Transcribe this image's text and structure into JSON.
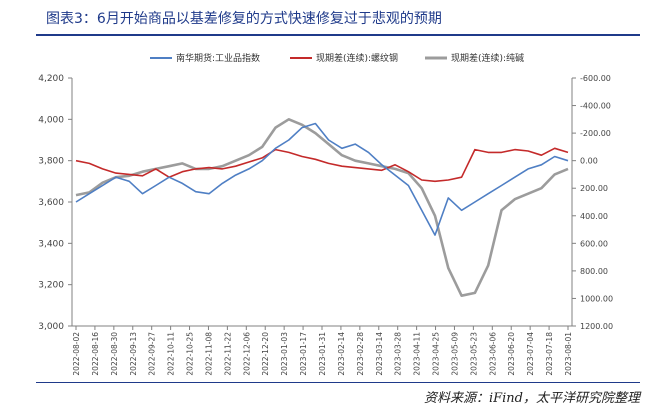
{
  "figure": {
    "title": "图表3：6月开始商品以基差修复的方式快速修复过于悲观的预期",
    "source": "资料来源：iFind，太平洋研究院整理"
  },
  "colors": {
    "title": "#1f3a8a",
    "series_blue": "#4f7fc4",
    "series_red": "#c42a2a",
    "series_gray": "#9c9c9c"
  },
  "chart_data": {
    "type": "line",
    "legend_position": "top-center",
    "grid": false,
    "left_axis": {
      "ylim": [
        3000,
        4200
      ],
      "ticks": [
        3000,
        3200,
        3400,
        3600,
        3800,
        4000,
        4200
      ],
      "tick_labels": [
        "3,000",
        "3,200",
        "3,400",
        "3,600",
        "3,800",
        "4,000",
        "4,200"
      ]
    },
    "right_axis": {
      "ylim": [
        1200,
        -600
      ],
      "inverted": true,
      "ticks": [
        -600,
        -400,
        -200,
        0,
        200,
        400,
        600,
        800,
        1000,
        1200
      ],
      "tick_labels": [
        "-600.00",
        "-400.00",
        "-200.00",
        "0.00",
        "200.00",
        "400.00",
        "600.00",
        "800.00",
        "1000.00",
        "1200.00"
      ]
    },
    "x_tick_labels": [
      "2022-08-02",
      "2022-08-16",
      "2022-08-30",
      "2022-09-13",
      "2022-09-27",
      "2022-10-11",
      "2022-10-25",
      "2022-11-08",
      "2022-11-22",
      "2022-12-06",
      "2022-12-20",
      "2023-01-03",
      "2023-01-17",
      "2023-01-31",
      "2023-02-14",
      "2023-02-28",
      "2023-03-14",
      "2023-03-28",
      "2023-04-11",
      "2023-04-25",
      "2023-05-09",
      "2023-05-23",
      "2023-06-06",
      "2023-06-20",
      "2023-07-04",
      "2023-07-18",
      "2023-08-01"
    ],
    "series": [
      {
        "name": "南华期货:工业品指数",
        "axis": "left",
        "values": [
          3600,
          3640,
          3680,
          3720,
          3700,
          3640,
          3680,
          3720,
          3690,
          3650,
          3640,
          3690,
          3730,
          3760,
          3800,
          3860,
          3900,
          3960,
          3980,
          3900,
          3860,
          3880,
          3840,
          3780,
          3730,
          3680,
          3560,
          3440,
          3620,
          3560,
          3600,
          3640,
          3680,
          3720,
          3760,
          3780,
          3820,
          3800
        ]
      },
      {
        "name": "现期差(连续):螺纹钢",
        "axis": "right",
        "values": [
          0,
          20,
          60,
          90,
          100,
          110,
          60,
          120,
          80,
          60,
          50,
          60,
          40,
          10,
          -20,
          -80,
          -60,
          -30,
          -10,
          20,
          40,
          50,
          60,
          70,
          30,
          80,
          140,
          150,
          140,
          120,
          -80,
          -60,
          -60,
          -80,
          -70,
          -40,
          -90,
          -60
        ]
      },
      {
        "name": "现期差(连续):纯碱",
        "axis": "right",
        "values": [
          250,
          230,
          160,
          120,
          110,
          80,
          60,
          40,
          20,
          60,
          60,
          40,
          0,
          -40,
          -100,
          -240,
          -300,
          -260,
          -200,
          -120,
          -40,
          0,
          20,
          40,
          60,
          90,
          200,
          400,
          780,
          980,
          960,
          760,
          360,
          280,
          240,
          200,
          100,
          60
        ]
      }
    ]
  }
}
